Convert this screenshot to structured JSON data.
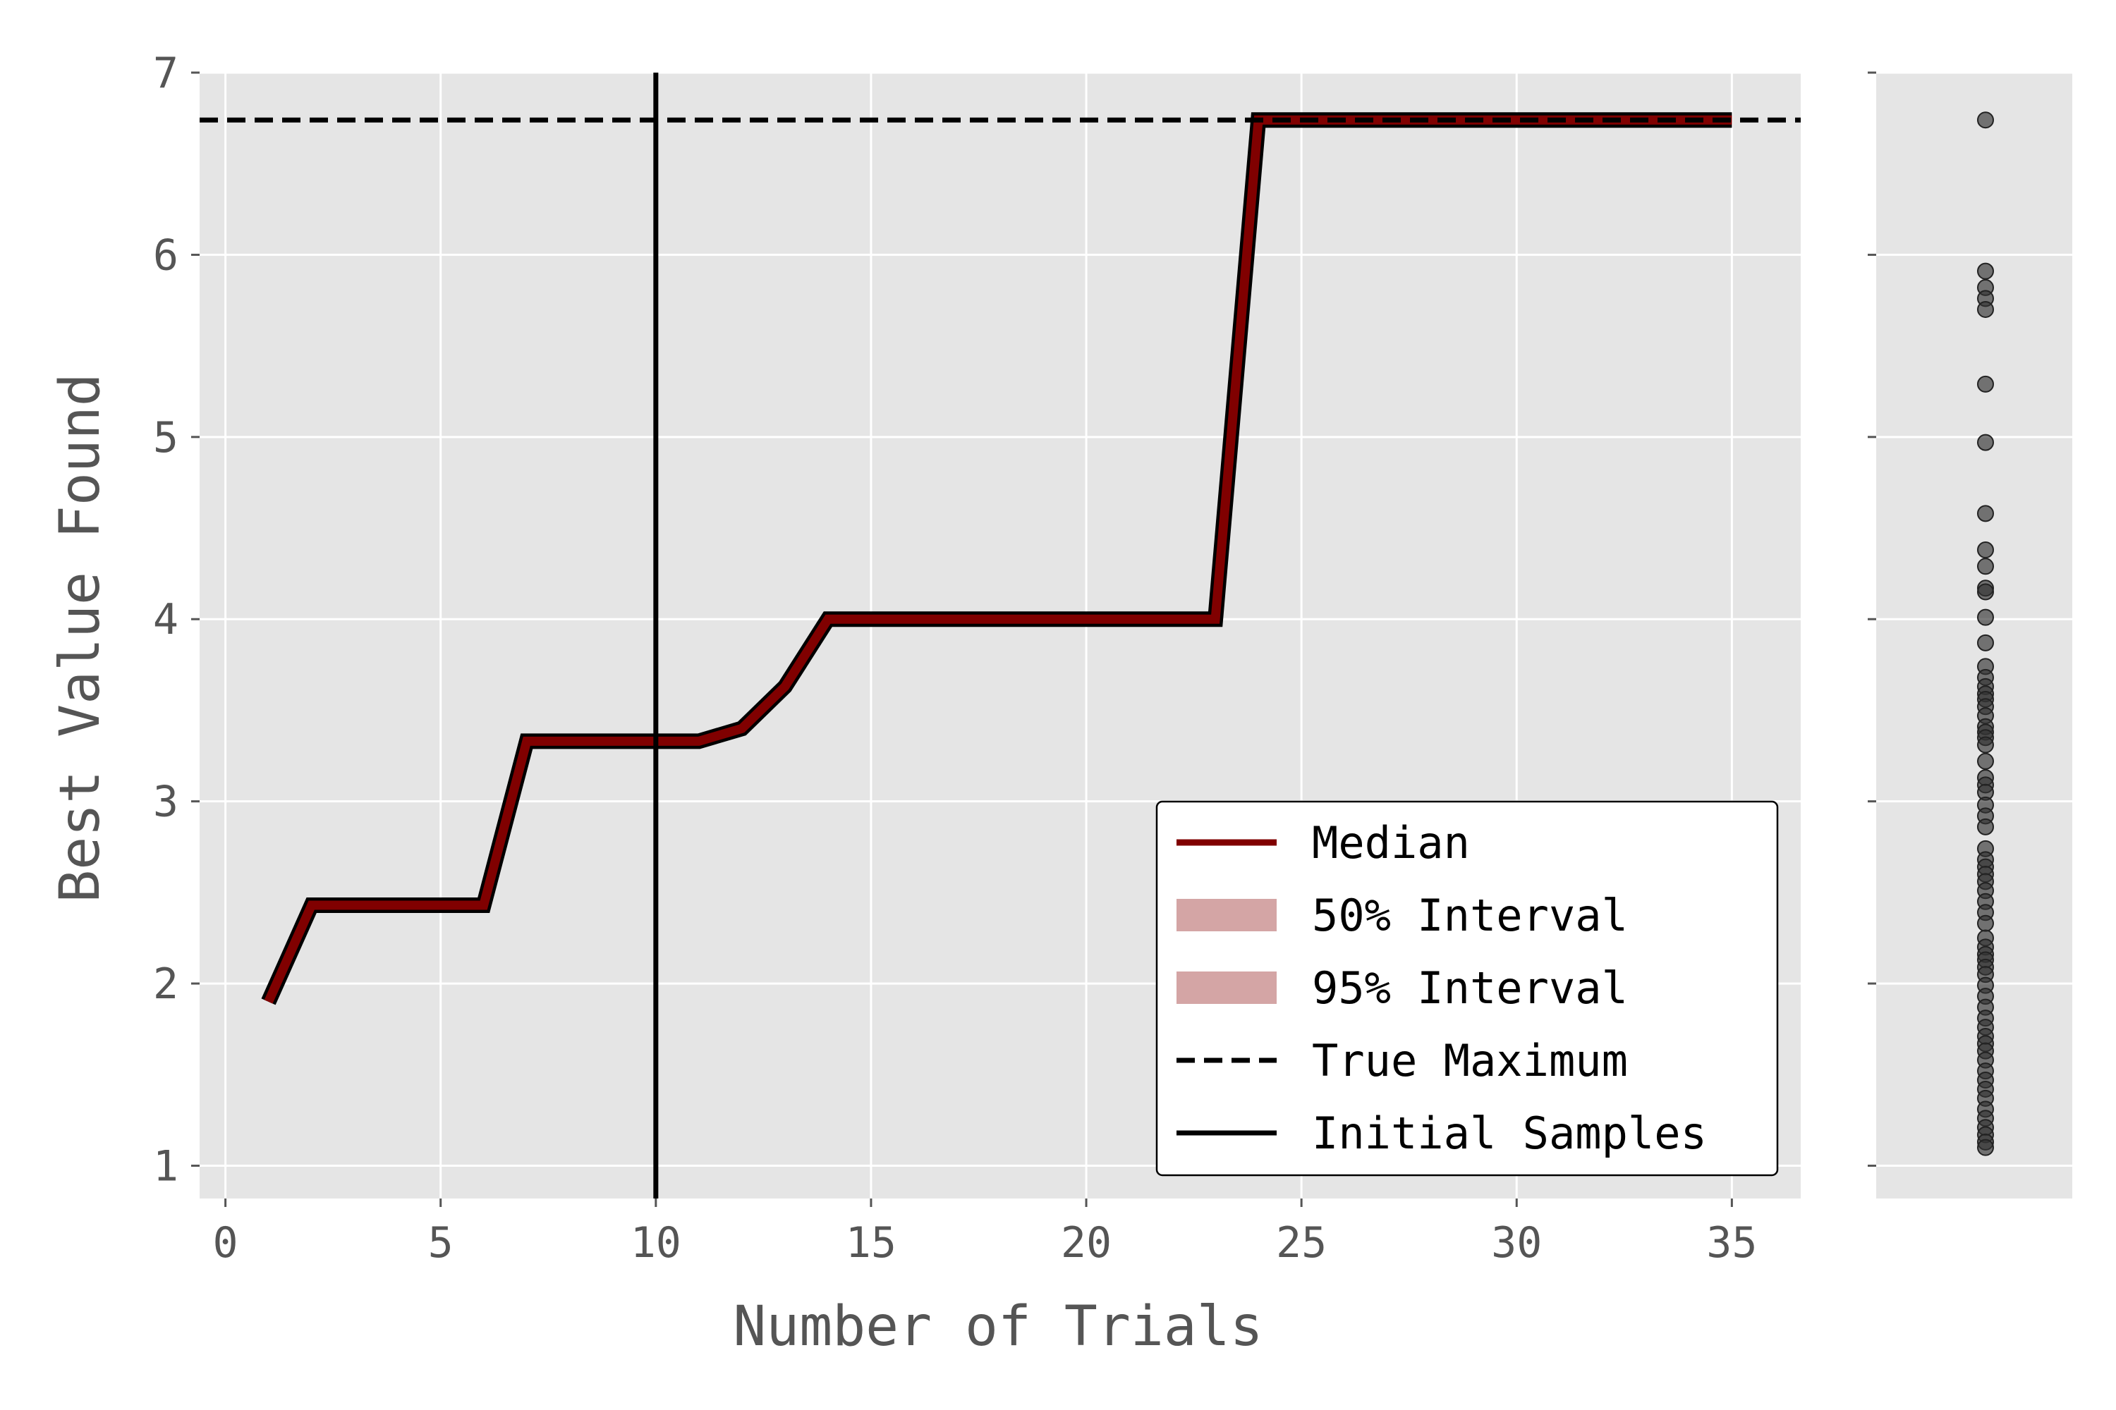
{
  "chart_data": [
    {
      "type": "line",
      "xlabel": "Number of Trials",
      "ylabel": "Best Value Found",
      "xlim": [
        -0.6,
        36.6
      ],
      "ylim": [
        0.82,
        7.0
      ],
      "xticks": [
        0,
        5,
        10,
        15,
        20,
        25,
        30,
        35
      ],
      "yticks": [
        1,
        2,
        3,
        4,
        5,
        6,
        7
      ],
      "grid": true,
      "legend_position": "lower-right",
      "series": [
        {
          "name": "Median",
          "color": "#800000",
          "x": [
            1,
            2,
            3,
            4,
            5,
            6,
            7,
            8,
            9,
            10,
            11,
            12,
            13,
            14,
            15,
            16,
            17,
            18,
            19,
            20,
            21,
            22,
            23,
            24,
            25,
            26,
            27,
            28,
            29,
            30,
            31,
            32,
            33,
            34,
            35
          ],
          "y": [
            1.9,
            2.43,
            2.43,
            2.43,
            2.43,
            2.43,
            3.33,
            3.33,
            3.33,
            3.33,
            3.33,
            3.4,
            3.63,
            4.0,
            4.0,
            4.0,
            4.0,
            4.0,
            4.0,
            4.0,
            4.0,
            4.0,
            4.0,
            6.74,
            6.74,
            6.74,
            6.74,
            6.74,
            6.74,
            6.74,
            6.74,
            6.74,
            6.74,
            6.74,
            6.74
          ]
        },
        {
          "name": "50% Interval",
          "color": "#d4a5a5"
        },
        {
          "name": "95% Interval",
          "color": "#d4a5a5"
        },
        {
          "name": "True Maximum",
          "color": "#000000",
          "style": "dashed",
          "y": 6.74
        },
        {
          "name": "Initial Samples",
          "color": "#000000",
          "style": "solid",
          "x": 10
        }
      ]
    },
    {
      "type": "scatter",
      "ylim": [
        0.82,
        7.0
      ],
      "yticks": [
        1,
        2,
        3,
        4,
        5,
        6,
        7
      ],
      "grid": true,
      "color": "#333333",
      "values": [
        6.74,
        5.91,
        5.82,
        5.76,
        5.7,
        5.29,
        4.97,
        4.58,
        4.38,
        4.29,
        4.17,
        4.15,
        4.01,
        3.87,
        3.74,
        3.68,
        3.63,
        3.59,
        3.56,
        3.52,
        3.47,
        3.41,
        3.38,
        3.35,
        3.31,
        3.22,
        3.13,
        3.09,
        3.05,
        2.98,
        2.92,
        2.86,
        2.74,
        2.68,
        2.64,
        2.6,
        2.56,
        2.51,
        2.45,
        2.39,
        2.33,
        2.25,
        2.2,
        2.16,
        2.13,
        2.09,
        2.05,
        1.99,
        1.93,
        1.87,
        1.81,
        1.76,
        1.71,
        1.67,
        1.63,
        1.58,
        1.52,
        1.47,
        1.42,
        1.37,
        1.31,
        1.26,
        1.21,
        1.17,
        1.13,
        1.1
      ]
    }
  ]
}
